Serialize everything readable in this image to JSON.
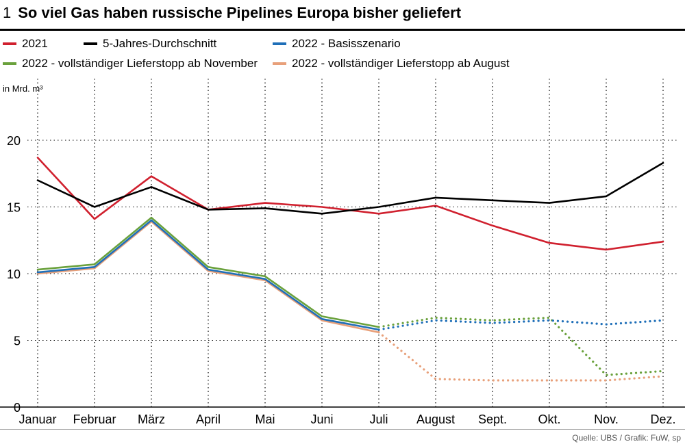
{
  "header": {
    "figure_number": "1",
    "title": "So viel Gas haben russische Pipelines Europa bisher geliefert"
  },
  "legend": [
    {
      "label": "2021",
      "color": "#d0202e"
    },
    {
      "label": "5-Jahres-Durchschnitt",
      "color": "#000000"
    },
    {
      "label": "2022 - Basisszenario",
      "color": "#1f6fb8"
    },
    {
      "label": "2022 - vollständiger Lieferstopp ab November",
      "color": "#6aa13c"
    },
    {
      "label": "2022 - vollständiger Lieferstopp ab August",
      "color": "#e8a07a"
    }
  ],
  "source": "Quelle: UBS / Grafik: FuW, sp",
  "chart_data": {
    "type": "line",
    "ylabel": "in Mrd. m³",
    "ylim": [
      0,
      20
    ],
    "yticks": [
      0,
      5,
      10,
      15,
      20
    ],
    "categories": [
      "Januar",
      "Februar",
      "März",
      "April",
      "Mai",
      "Juni",
      "Juli",
      "August",
      "Sept.",
      "Okt.",
      "Nov.",
      "Dez."
    ],
    "grid": "vertical dotted",
    "series": [
      {
        "name": "2021",
        "color": "#d0202e",
        "style": "solid",
        "values": [
          18.7,
          14.1,
          17.3,
          14.8,
          15.3,
          15.0,
          14.5,
          15.1,
          13.6,
          12.3,
          11.8,
          12.4
        ]
      },
      {
        "name": "5-Jahres-Durchschnitt",
        "color": "#000000",
        "style": "solid",
        "values": [
          17.0,
          15.0,
          16.5,
          14.8,
          14.9,
          14.5,
          15.0,
          15.7,
          15.5,
          15.3,
          15.8,
          18.3
        ]
      },
      {
        "name": "2022 - vollständiger Lieferstopp ab August",
        "color": "#e8a07a",
        "style": "solid",
        "values": [
          10.0,
          10.4,
          13.9,
          10.2,
          9.5,
          6.5,
          5.6,
          null,
          null,
          null,
          null,
          null
        ]
      },
      {
        "name": "2022 - vollständiger Lieferstopp ab November",
        "color": "#6aa13c",
        "style": "solid",
        "values": [
          10.3,
          10.7,
          14.2,
          10.5,
          9.8,
          6.8,
          6.0,
          null,
          null,
          null,
          null,
          null
        ]
      },
      {
        "name": "2022 - Basisszenario",
        "color": "#1f6fb8",
        "style": "solid",
        "values": [
          10.1,
          10.5,
          14.0,
          10.3,
          9.6,
          6.6,
          5.8,
          null,
          null,
          null,
          null,
          null
        ]
      },
      {
        "name": "2022 - vollständiger Lieferstopp ab August",
        "color": "#e8a07a",
        "style": "dotted",
        "values": [
          null,
          null,
          null,
          null,
          null,
          null,
          5.6,
          2.1,
          2.0,
          2.0,
          2.0,
          2.3
        ]
      },
      {
        "name": "2022 - vollständiger Lieferstopp ab November",
        "color": "#6aa13c",
        "style": "dotted",
        "values": [
          null,
          null,
          null,
          null,
          null,
          null,
          6.0,
          6.7,
          6.5,
          6.7,
          2.4,
          2.7
        ]
      },
      {
        "name": "2022 - Basisszenario",
        "color": "#1f6fb8",
        "style": "dotted",
        "values": [
          null,
          null,
          null,
          null,
          null,
          null,
          5.8,
          6.5,
          6.3,
          6.5,
          6.2,
          6.5
        ]
      }
    ]
  }
}
